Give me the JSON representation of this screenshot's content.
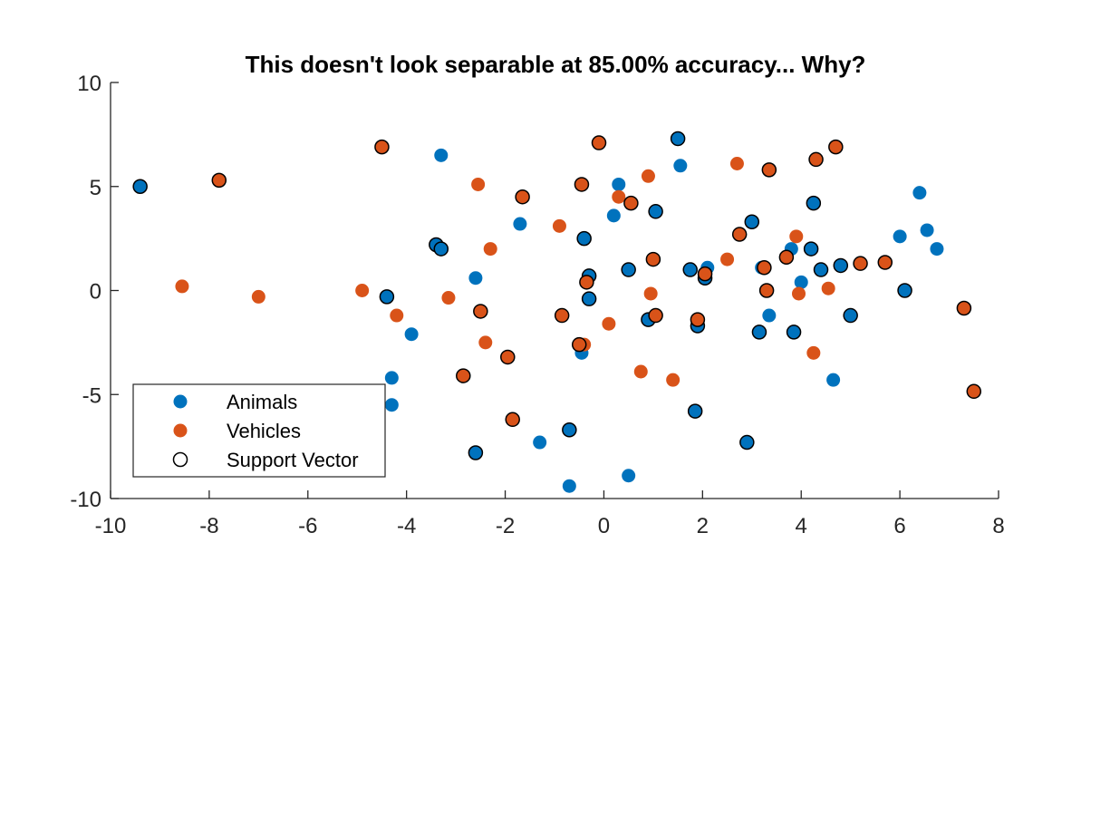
{
  "chart_data": {
    "type": "scatter",
    "title": "This doesn't look separable at 85.00% accuracy... Why?",
    "xlabel": "",
    "ylabel": "",
    "xlim": [
      -10,
      8
    ],
    "ylim": [
      -10,
      10
    ],
    "xticks": [
      "-10",
      "-8",
      "-6",
      "-4",
      "-2",
      "0",
      "2",
      "4",
      "6",
      "8"
    ],
    "yticks": [
      "10",
      "5",
      "0",
      "-5",
      "-10"
    ],
    "grid": false,
    "legend_position": "bottom-left",
    "colors": {
      "Animals": "#0072BD",
      "Vehicles": "#D95319",
      "support_vector_edge": "#000000"
    },
    "series": [
      {
        "name": "Animals",
        "points": [
          [
            -9.4,
            5.0
          ],
          [
            -4.4,
            -0.3
          ],
          [
            -4.3,
            -4.2
          ],
          [
            -4.3,
            -5.5
          ],
          [
            -3.9,
            -2.1
          ],
          [
            -3.3,
            6.5
          ],
          [
            -3.4,
            2.2
          ],
          [
            -3.3,
            2.0
          ],
          [
            -2.6,
            0.6
          ],
          [
            -2.6,
            -7.8
          ],
          [
            -1.7,
            3.2
          ],
          [
            -1.3,
            -7.3
          ],
          [
            -0.7,
            -9.4
          ],
          [
            -0.7,
            -6.7
          ],
          [
            -0.4,
            2.5
          ],
          [
            -0.3,
            0.7
          ],
          [
            -0.3,
            -0.4
          ],
          [
            -0.45,
            -3.0
          ],
          [
            0.2,
            3.6
          ],
          [
            0.3,
            5.1
          ],
          [
            0.5,
            1.0
          ],
          [
            0.5,
            -8.9
          ],
          [
            0.9,
            -1.4
          ],
          [
            1.05,
            3.8
          ],
          [
            1.5,
            7.3
          ],
          [
            1.55,
            6.0
          ],
          [
            1.75,
            1.0
          ],
          [
            1.85,
            -5.8
          ],
          [
            1.9,
            -1.7
          ],
          [
            2.05,
            0.6
          ],
          [
            2.1,
            1.1
          ],
          [
            2.9,
            -7.3
          ],
          [
            3.0,
            3.3
          ],
          [
            3.15,
            -2.0
          ],
          [
            3.2,
            1.1
          ],
          [
            3.35,
            -1.2
          ],
          [
            3.8,
            2.0
          ],
          [
            3.85,
            -2.0
          ],
          [
            4.0,
            0.4
          ],
          [
            4.2,
            2.0
          ],
          [
            4.25,
            4.2
          ],
          [
            4.4,
            1.0
          ],
          [
            4.65,
            -4.3
          ],
          [
            4.8,
            1.2
          ],
          [
            5.0,
            -1.2
          ],
          [
            6.0,
            2.6
          ],
          [
            6.1,
            0.0
          ],
          [
            6.4,
            4.7
          ],
          [
            6.55,
            2.9
          ],
          [
            6.75,
            2.0
          ]
        ],
        "support_vectors": [
          true,
          true,
          false,
          false,
          false,
          false,
          true,
          true,
          false,
          true,
          false,
          false,
          false,
          true,
          true,
          true,
          true,
          false,
          false,
          false,
          true,
          false,
          true,
          true,
          true,
          false,
          true,
          true,
          true,
          true,
          false,
          true,
          true,
          true,
          false,
          false,
          false,
          true,
          false,
          true,
          true,
          true,
          false,
          true,
          true,
          false,
          true,
          false,
          false,
          false
        ]
      },
      {
        "name": "Vehicles",
        "points": [
          [
            -8.55,
            0.2
          ],
          [
            -7.8,
            5.3
          ],
          [
            -7.0,
            -0.3
          ],
          [
            -4.9,
            0.0
          ],
          [
            -4.5,
            6.9
          ],
          [
            -4.2,
            -1.2
          ],
          [
            -3.15,
            -0.35
          ],
          [
            -2.85,
            -4.1
          ],
          [
            -2.55,
            5.1
          ],
          [
            -2.5,
            -1.0
          ],
          [
            -2.4,
            -2.5
          ],
          [
            -2.3,
            2.0
          ],
          [
            -1.95,
            -3.2
          ],
          [
            -1.85,
            -6.2
          ],
          [
            -1.65,
            4.5
          ],
          [
            -0.9,
            3.1
          ],
          [
            -0.85,
            -1.2
          ],
          [
            -0.45,
            5.1
          ],
          [
            -0.4,
            -2.6
          ],
          [
            -0.5,
            -2.6
          ],
          [
            -0.35,
            0.4
          ],
          [
            -0.1,
            7.1
          ],
          [
            0.1,
            -1.6
          ],
          [
            0.3,
            4.5
          ],
          [
            0.55,
            4.2
          ],
          [
            0.75,
            -3.9
          ],
          [
            0.9,
            5.5
          ],
          [
            0.95,
            -0.15
          ],
          [
            1.0,
            1.5
          ],
          [
            1.05,
            -1.2
          ],
          [
            1.4,
            -4.3
          ],
          [
            1.9,
            -1.4
          ],
          [
            2.05,
            0.8
          ],
          [
            2.5,
            1.5
          ],
          [
            2.7,
            6.1
          ],
          [
            2.75,
            2.7
          ],
          [
            3.25,
            1.1
          ],
          [
            3.3,
            0.0
          ],
          [
            3.35,
            5.8
          ],
          [
            3.7,
            1.6
          ],
          [
            3.9,
            2.6
          ],
          [
            3.95,
            -0.15
          ],
          [
            4.25,
            -3.0
          ],
          [
            4.3,
            6.3
          ],
          [
            4.55,
            0.1
          ],
          [
            4.7,
            6.9
          ],
          [
            5.2,
            1.3
          ],
          [
            5.7,
            1.35
          ],
          [
            7.3,
            -0.85
          ],
          [
            7.5,
            -4.85
          ]
        ],
        "support_vectors": [
          false,
          true,
          false,
          false,
          true,
          false,
          false,
          true,
          false,
          true,
          false,
          false,
          true,
          true,
          true,
          false,
          true,
          true,
          false,
          true,
          true,
          true,
          false,
          false,
          true,
          false,
          false,
          false,
          true,
          true,
          false,
          true,
          true,
          false,
          false,
          true,
          true,
          true,
          true,
          true,
          false,
          false,
          false,
          true,
          false,
          true,
          true,
          true,
          true,
          true
        ]
      }
    ],
    "legend": {
      "items": [
        {
          "label": "Animals",
          "series": "Animals"
        },
        {
          "label": "Vehicles",
          "series": "Vehicles"
        },
        {
          "label": "Support Vector",
          "series": "support_vector"
        }
      ]
    }
  }
}
